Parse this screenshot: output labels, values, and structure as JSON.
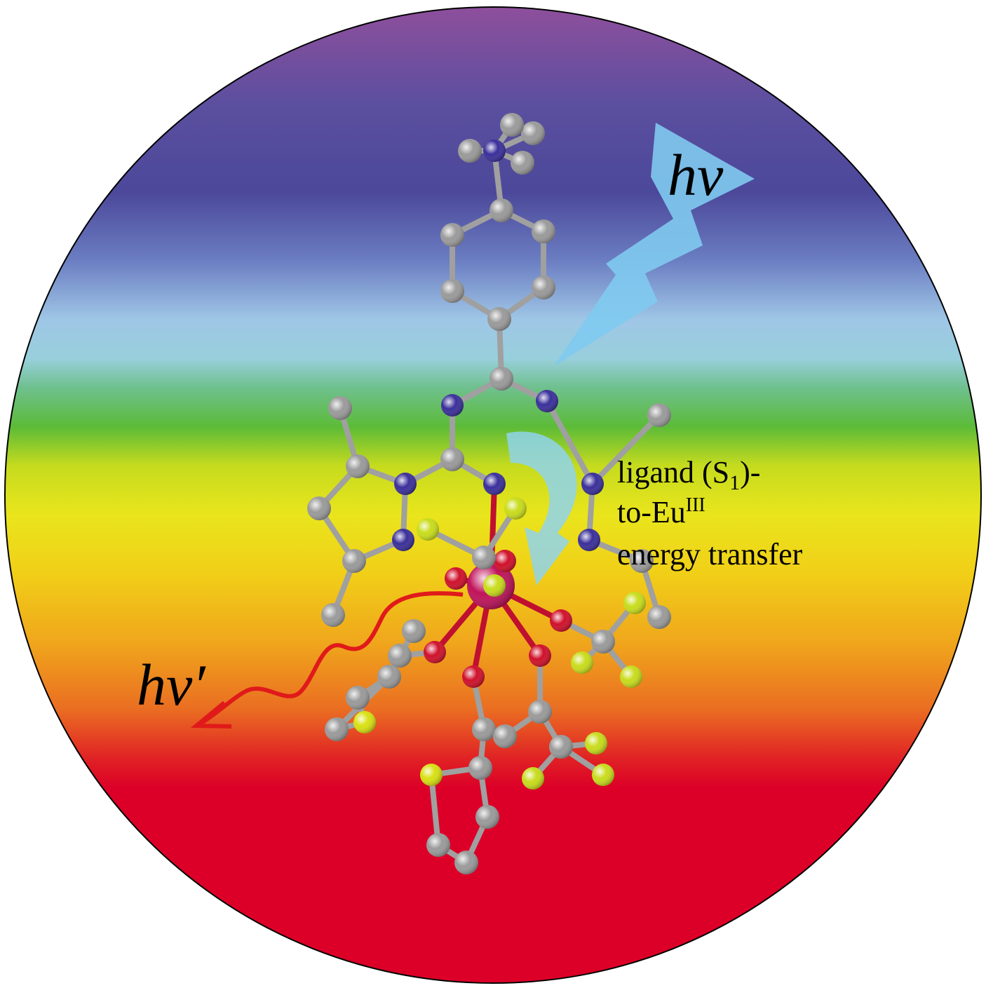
{
  "excitation": {
    "label": "hν"
  },
  "emission": {
    "label": "hν′"
  },
  "annotation": {
    "line1": {
      "text": "ligand (S",
      "subscript": "1",
      "after": ")-"
    },
    "line2": {
      "text": "to-Eu",
      "superscript": "III"
    },
    "line3": {
      "text": "energy transfer"
    }
  }
}
